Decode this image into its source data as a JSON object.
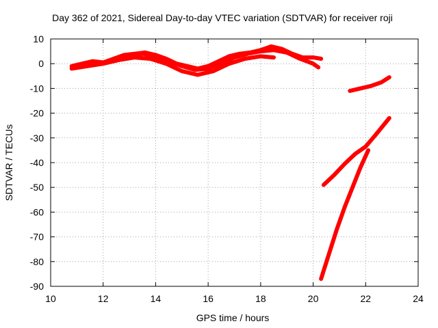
{
  "chart_data": {
    "type": "line",
    "title": "Day 362 of 2021, Sidereal Day-to-day VTEC variation (SDTVAR) for receiver roji",
    "xlabel": "GPS time / hours",
    "ylabel": "SDTVAR / TECUs",
    "xlim": [
      10,
      24
    ],
    "ylim": [
      -90,
      10
    ],
    "xticks": [
      10,
      12,
      14,
      16,
      18,
      20,
      22,
      24
    ],
    "yticks": [
      10,
      0,
      -10,
      -20,
      -30,
      -40,
      -50,
      -60,
      -70,
      -80,
      -90
    ],
    "grid": true,
    "color": "#ff0000",
    "series": [
      {
        "x": [
          10.8,
          11.2,
          11.6,
          12.0,
          12.4,
          12.8,
          13.2,
          13.6,
          14.0,
          14.4,
          14.8,
          15.2,
          15.6,
          16.0,
          16.4,
          16.8,
          17.2,
          17.6,
          18.0,
          18.4,
          18.8,
          19.2,
          19.6,
          20.0,
          20.3
        ],
        "y": [
          -1.0,
          0.0,
          1.0,
          0.5,
          2.0,
          3.5,
          4.0,
          4.5,
          3.5,
          2.0,
          0.0,
          -1.0,
          -2.0,
          -1.0,
          1.0,
          3.0,
          4.0,
          4.5,
          5.5,
          7.0,
          6.0,
          4.0,
          2.5,
          2.5,
          2.0
        ]
      },
      {
        "x": [
          10.8,
          11.4,
          12.0,
          12.6,
          13.2,
          13.8,
          14.4,
          15.0,
          15.6,
          16.2,
          16.8,
          17.4,
          18.0,
          18.5
        ],
        "y": [
          -2.0,
          -1.0,
          0.0,
          1.5,
          2.5,
          2.0,
          0.0,
          -3.0,
          -4.5,
          -3.0,
          0.0,
          2.0,
          3.0,
          2.5
        ]
      },
      {
        "x": [
          12.0,
          12.5,
          13.0,
          13.5,
          14.0,
          14.5,
          15.0,
          15.5,
          16.0,
          16.5,
          17.0,
          17.5,
          18.0,
          18.5,
          19.0,
          19.5,
          20.0,
          20.2
        ],
        "y": [
          0.5,
          1.5,
          3.0,
          4.0,
          3.0,
          1.0,
          -1.0,
          -2.5,
          -2.0,
          0.0,
          2.5,
          4.0,
          5.0,
          5.5,
          4.5,
          2.0,
          0.0,
          -1.5
        ]
      },
      {
        "x": [
          21.4,
          21.8,
          22.2,
          22.6,
          22.9
        ],
        "y": [
          -11.0,
          -10.0,
          -9.0,
          -7.5,
          -5.5
        ]
      },
      {
        "x": [
          20.4,
          20.8,
          21.2,
          21.6,
          22.0,
          22.4,
          22.9
        ],
        "y": [
          -49.0,
          -45.0,
          -40.5,
          -36.5,
          -33.5,
          -28.5,
          -22.0
        ]
      },
      {
        "x": [
          20.3,
          20.6,
          20.9,
          21.2,
          21.5,
          21.8,
          22.1
        ],
        "y": [
          -87.0,
          -77.0,
          -67.0,
          -58.0,
          -50.0,
          -42.0,
          -35.0
        ]
      }
    ]
  }
}
